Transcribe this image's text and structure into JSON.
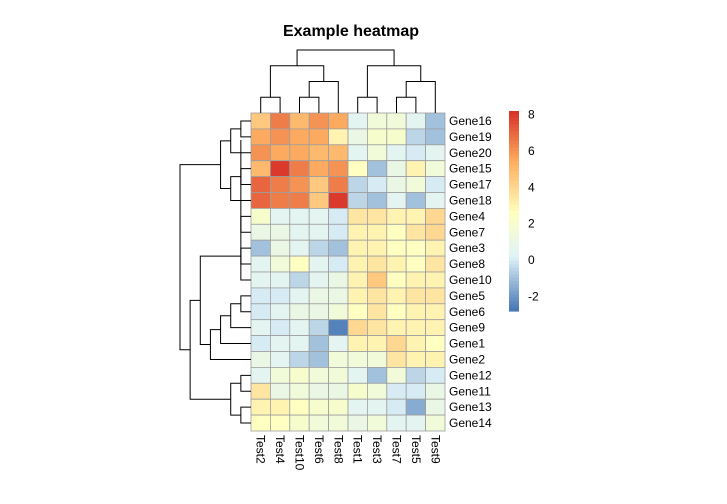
{
  "chart_data": {
    "type": "heatmap",
    "title": "Example heatmap",
    "columns": [
      "Test2",
      "Test4",
      "Test10",
      "Test6",
      "Test8",
      "Test1",
      "Test3",
      "Test7",
      "Test5",
      "Test9"
    ],
    "rows": [
      "Gene16",
      "Gene19",
      "Gene20",
      "Gene15",
      "Gene17",
      "Gene18",
      "Gene4",
      "Gene7",
      "Gene3",
      "Gene8",
      "Gene10",
      "Gene5",
      "Gene6",
      "Gene9",
      "Gene1",
      "Gene2",
      "Gene12",
      "Gene11",
      "Gene13",
      "Gene14"
    ],
    "values": [
      [
        4.5,
        6.5,
        5.0,
        6.0,
        5.5,
        0.5,
        1.5,
        1.5,
        0.5,
        -1.0
      ],
      [
        5.5,
        6.0,
        5.5,
        5.5,
        3.0,
        1.0,
        2.0,
        2.0,
        -0.5,
        -1.0
      ],
      [
        6.0,
        5.5,
        5.5,
        5.0,
        5.0,
        0.5,
        1.5,
        0.5,
        0.0,
        0.5
      ],
      [
        5.0,
        8.0,
        6.5,
        5.5,
        6.0,
        2.5,
        -1.0,
        1.0,
        3.0,
        1.5
      ],
      [
        7.0,
        6.5,
        6.0,
        4.5,
        6.5,
        -0.5,
        0.0,
        1.0,
        1.5,
        0.0
      ],
      [
        7.0,
        6.5,
        6.5,
        4.5,
        8.0,
        -0.5,
        -1.0,
        0.5,
        -1.0,
        0.5
      ],
      [
        2.0,
        0.5,
        0.5,
        0.5,
        0.0,
        3.5,
        3.5,
        3.0,
        3.0,
        4.0
      ],
      [
        1.0,
        1.0,
        0.5,
        0.5,
        0.0,
        3.0,
        3.0,
        2.5,
        3.5,
        4.0
      ],
      [
        -1.0,
        1.0,
        0.5,
        -0.5,
        -1.0,
        3.0,
        3.0,
        2.5,
        2.5,
        3.0
      ],
      [
        0.5,
        1.5,
        2.5,
        0.5,
        0.0,
        3.0,
        3.5,
        3.0,
        2.5,
        3.5
      ],
      [
        0.5,
        0.5,
        -0.5,
        0.5,
        1.0,
        3.0,
        4.5,
        2.5,
        3.0,
        3.0
      ],
      [
        0.0,
        0.0,
        0.5,
        1.0,
        1.0,
        3.0,
        3.5,
        3.0,
        3.5,
        3.5
      ],
      [
        0.0,
        0.5,
        1.0,
        1.0,
        1.5,
        2.5,
        3.5,
        2.5,
        3.0,
        3.0
      ],
      [
        0.5,
        0.0,
        0.5,
        -0.5,
        -2.5,
        4.0,
        3.5,
        3.0,
        3.0,
        3.0
      ],
      [
        0.0,
        0.5,
        0.5,
        -1.0,
        0.5,
        3.0,
        3.0,
        4.0,
        3.0,
        2.5
      ],
      [
        1.0,
        0.5,
        -0.5,
        -1.0,
        1.5,
        1.5,
        1.5,
        3.5,
        3.0,
        3.0
      ],
      [
        0.5,
        1.5,
        2.0,
        1.5,
        1.5,
        0.5,
        -1.0,
        1.5,
        -0.5,
        0.0
      ],
      [
        3.5,
        1.0,
        1.5,
        1.0,
        1.0,
        2.0,
        1.5,
        0.0,
        0.0,
        1.0
      ],
      [
        3.0,
        3.0,
        2.5,
        2.0,
        2.0,
        0.5,
        0.5,
        0.0,
        -1.5,
        1.0
      ],
      [
        2.5,
        2.5,
        2.0,
        1.5,
        1.5,
        1.0,
        1.5,
        0.5,
        0.5,
        1.5
      ]
    ],
    "color_scale": {
      "range": [
        -2.8,
        8.2
      ],
      "stops": [
        {
          "value": -2.8,
          "color": "#4575B4"
        },
        {
          "value": 0.2,
          "color": "#E0F3F8"
        },
        {
          "value": 2.6,
          "color": "#FFFFBF"
        },
        {
          "value": 5.4,
          "color": "#FDAE61"
        },
        {
          "value": 8.2,
          "color": "#D73027"
        }
      ]
    },
    "legend": {
      "ticks": [
        8,
        6,
        4,
        2,
        0,
        -2
      ],
      "labels": [
        "8",
        "6",
        "4",
        "2",
        "0",
        "-2"
      ],
      "placement": "right"
    },
    "dendrograms": {
      "columns": {
        "type": "dendrogram",
        "merges": [
          [
            -1,
            -2
          ],
          [
            -3,
            -4
          ],
          [
            2,
            -5
          ],
          [
            1,
            3
          ],
          [
            -6,
            -7
          ],
          [
            -8,
            -9
          ],
          [
            6,
            -10
          ],
          [
            5,
            7
          ],
          [
            4,
            8
          ]
        ]
      },
      "rows": {
        "type": "dendrogram",
        "merges": [
          [
            -1,
            -2
          ],
          [
            1,
            -3
          ],
          [
            -4,
            -5
          ],
          [
            3,
            -6
          ],
          [
            2,
            4
          ],
          [
            -7,
            -8
          ],
          [
            -9,
            -10
          ],
          [
            8,
            -11
          ],
          [
            -12,
            -13
          ],
          [
            9,
            -14
          ],
          [
            10,
            -15
          ],
          [
            11,
            -16
          ],
          [
            7,
            12
          ],
          [
            -17,
            -18
          ],
          [
            -19,
            -20
          ],
          [
            14,
            15
          ],
          [
            13,
            16
          ],
          [
            5,
            17
          ]
        ]
      }
    }
  }
}
